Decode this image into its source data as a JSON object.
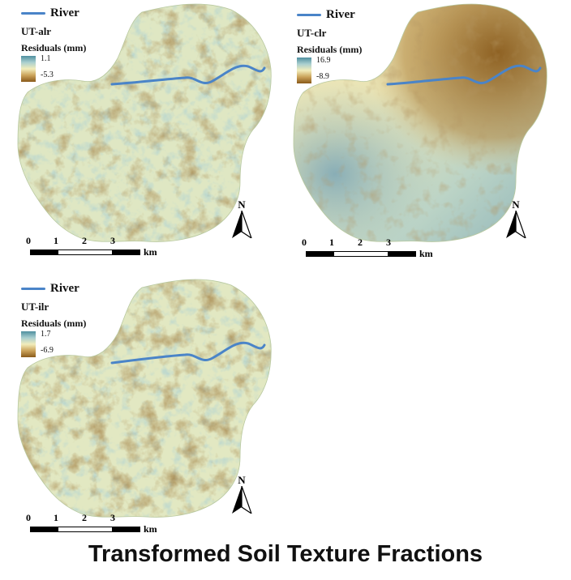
{
  "title": "Transformed Soil Texture Fractions",
  "legend_common": {
    "river_label": "River",
    "residuals_label": "Residuals (mm)"
  },
  "panels": [
    {
      "method": "UT-alr",
      "max": "1.1",
      "min": "-5.3"
    },
    {
      "method": "UT-clr",
      "max": "16.9",
      "min": "-8.9"
    },
    {
      "method": "UT-ilr",
      "max": "1.7",
      "min": "-6.9"
    }
  ],
  "scalebar": {
    "ticks": [
      "0",
      "1",
      "2",
      "3"
    ],
    "unit": "km"
  },
  "north_label": "N",
  "colors": {
    "high": "#4f8f9f",
    "mid": "#f2edbb",
    "low": "#8a5a1a",
    "river": "#4a84c8"
  }
}
